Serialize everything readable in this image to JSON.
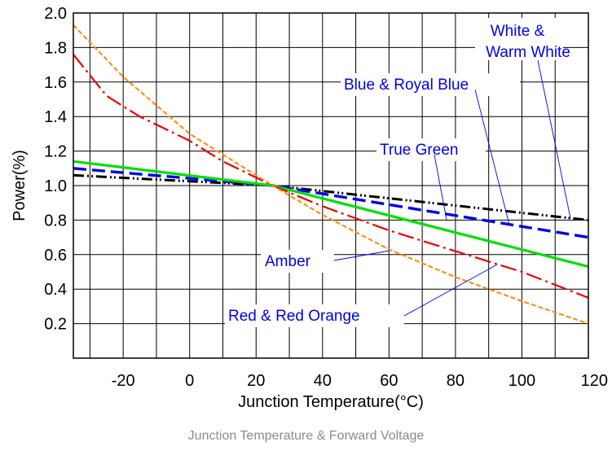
{
  "chart_data": {
    "type": "line",
    "xlabel": "Junction Temperature(°C)",
    "ylabel": "Power(%)",
    "xlim": [
      -35,
      120
    ],
    "ylim": [
      0,
      2.0
    ],
    "xticks": [
      -20,
      0,
      20,
      40,
      60,
      80,
      100,
      120
    ],
    "yticks": [
      0.2,
      0.4,
      0.6,
      0.8,
      1.0,
      1.2,
      1.4,
      1.6,
      1.8,
      2.0
    ],
    "grid": true,
    "series": [
      {
        "name": "White & Warm White",
        "color": "#000000",
        "dash": "dash-dot-dot",
        "x": [
          -35,
          25,
          120
        ],
        "y": [
          1.06,
          1.0,
          0.8
        ]
      },
      {
        "name": "Blue & Royal Blue",
        "color": "#0000ee",
        "dash": "dash",
        "x": [
          -35,
          25,
          120
        ],
        "y": [
          1.1,
          1.0,
          0.7
        ]
      },
      {
        "name": "True Green",
        "color": "#00e000",
        "dash": "solid",
        "x": [
          -35,
          25,
          120
        ],
        "y": [
          1.14,
          1.0,
          0.53
        ]
      },
      {
        "name": "Amber",
        "color": "#ee0000",
        "dash": "dash-dot",
        "x": [
          -35,
          -25,
          -15,
          0,
          10,
          25,
          40,
          60,
          80,
          100,
          120
        ],
        "y": [
          1.76,
          1.52,
          1.4,
          1.26,
          1.14,
          1.0,
          0.88,
          0.74,
          0.62,
          0.5,
          0.35
        ]
      },
      {
        "name": "Red & Red Orange",
        "color": "#ff8800",
        "dash": "dash-short",
        "x": [
          -35,
          -20,
          0,
          15,
          25,
          40,
          60,
          80,
          100,
          120
        ],
        "y": [
          1.93,
          1.63,
          1.3,
          1.12,
          1.0,
          0.83,
          0.63,
          0.47,
          0.33,
          0.2
        ]
      }
    ],
    "annotations": [
      {
        "text": "White & Warm White",
        "lines": [
          "White &",
          "Warm White"
        ],
        "color": "#0000ee"
      },
      {
        "text": "Blue & Royal Blue",
        "color": "#0000ee"
      },
      {
        "text": "True Green",
        "color": "#0000ee"
      },
      {
        "text": "Amber",
        "color": "#0000ee"
      },
      {
        "text": "Red & Red Orange",
        "color": "#0000ee"
      }
    ]
  },
  "caption": "Junction Temperature & Forward Voltage"
}
